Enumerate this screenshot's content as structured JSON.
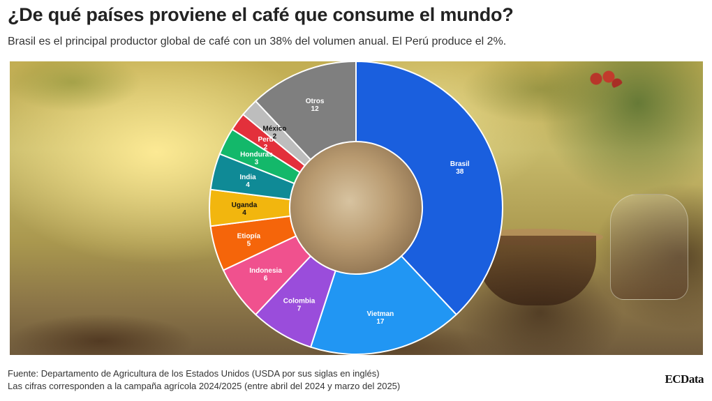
{
  "header": {
    "title": "¿De qué países proviene el café que consume el mundo?",
    "subtitle": "Brasil es el principal productor global de café con un 38% del volumen anual. El Perú produce el 2%."
  },
  "footer": {
    "source": "Fuente: Departamento de Agricultura de los Estados Unidos (USDA por sus siglas en inglés)",
    "note": "Las cifras corresponden a la campaña agrícola 2024/2025 (entre abril del 2024 y marzo del 2025)",
    "brand": "ECData"
  },
  "chart_data": {
    "type": "pie",
    "variant": "donut",
    "start": "top",
    "direction": "clockwise",
    "background": "photo of coffee beans, a burlap sack, and a cup of coffee",
    "slices": [
      {
        "label": "Brasil",
        "value": 38,
        "color": "#1a5fde",
        "text_color": "#ffffff"
      },
      {
        "label": "Vietman",
        "value": 17,
        "color": "#2196f3",
        "text_color": "#ffffff"
      },
      {
        "label": "Colombia",
        "value": 7,
        "color": "#9a4ddb",
        "text_color": "#ffffff"
      },
      {
        "label": "Indonesia",
        "value": 6,
        "color": "#f0518e",
        "text_color": "#ffffff"
      },
      {
        "label": "Etiopía",
        "value": 5,
        "color": "#f5650a",
        "text_color": "#ffffff"
      },
      {
        "label": "Uganda",
        "value": 4,
        "color": "#f2b60e",
        "text_color": "#111111"
      },
      {
        "label": "India",
        "value": 4,
        "color": "#0f8a96",
        "text_color": "#ffffff"
      },
      {
        "label": "Honduras",
        "value": 3,
        "color": "#13b86a",
        "text_color": "#ffffff"
      },
      {
        "label": "Perú",
        "value": 2,
        "color": "#e3303b",
        "text_color": "#ffffff"
      },
      {
        "label": "México",
        "value": 2,
        "color": "#bdbdbd",
        "text_color": "#111111"
      },
      {
        "label": "Otros",
        "value": 12,
        "color": "#7f7f7f",
        "text_color": "#ffffff"
      }
    ]
  }
}
